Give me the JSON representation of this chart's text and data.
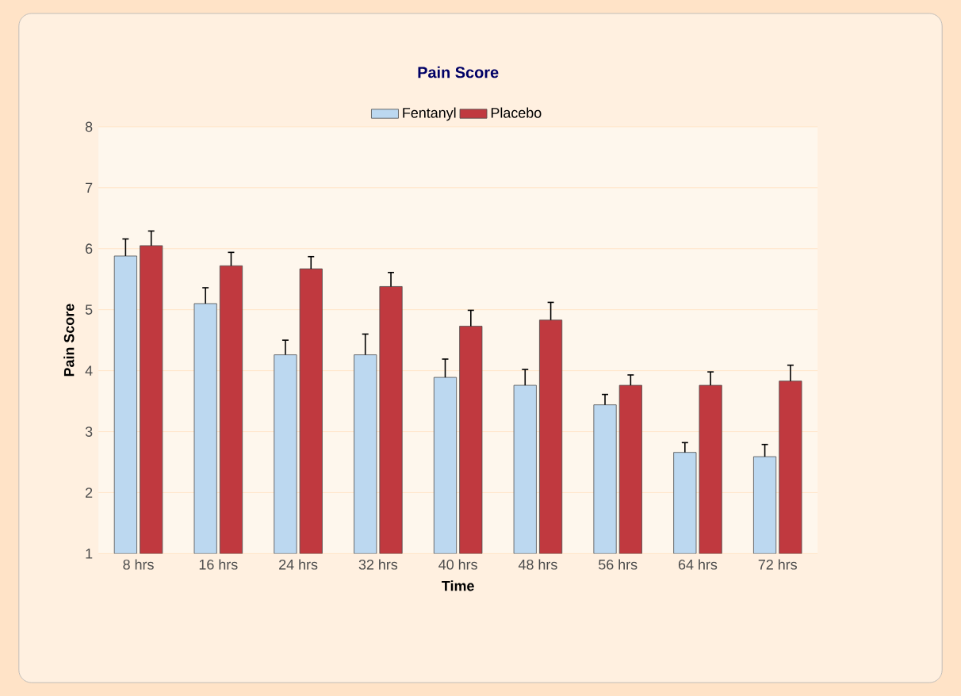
{
  "chart_data": {
    "type": "bar",
    "title": "Pain Score",
    "xlabel": "Time",
    "ylabel": "Pain Score",
    "categories": [
      "8 hrs",
      "16 hrs",
      "24 hrs",
      "32 hrs",
      "40 hrs",
      "48 hrs",
      "56 hrs",
      "64 hrs",
      "72 hrs"
    ],
    "series": [
      {
        "name": "Fentanyl",
        "color": "#bcd8f0",
        "values": [
          5.88,
          5.1,
          4.26,
          4.26,
          3.89,
          3.76,
          3.44,
          2.66,
          2.59
        ],
        "errors": [
          0.28,
          0.26,
          0.24,
          0.34,
          0.3,
          0.26,
          0.17,
          0.16,
          0.2
        ]
      },
      {
        "name": "Placebo",
        "color": "#c0393f",
        "values": [
          6.05,
          5.72,
          5.67,
          5.38,
          4.73,
          4.83,
          3.76,
          3.76,
          3.83
        ],
        "errors": [
          0.24,
          0.22,
          0.2,
          0.23,
          0.26,
          0.29,
          0.17,
          0.22,
          0.26
        ]
      }
    ],
    "ylim": [
      1,
      8
    ],
    "yticks": [
      1,
      2,
      3,
      4,
      5,
      6,
      7,
      8
    ],
    "grid": "y",
    "legend": "top"
  }
}
